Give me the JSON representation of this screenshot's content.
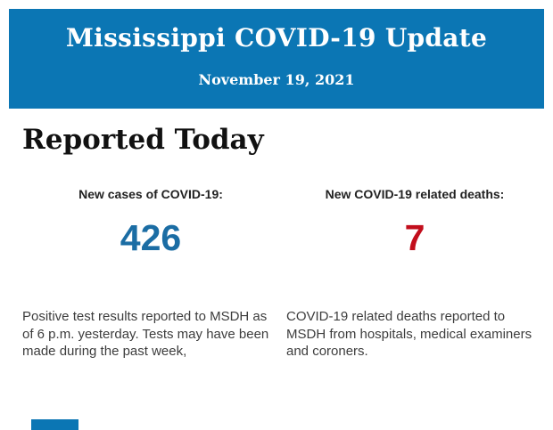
{
  "header": {
    "title": "Mississippi COVID-19 Update",
    "date": "November 19, 2021",
    "background_color": "#0b76b4",
    "text_color": "#ffffff"
  },
  "main": {
    "section_title": "Reported Today",
    "stats": [
      {
        "label": "New cases of COVID-19:",
        "value": "426",
        "value_color": "#1b6da4",
        "description": "Positive test results reported to MSDH as of 6 p.m. yesterday. Tests may have been made during the past week,"
      },
      {
        "label": "New COVID-19 related deaths:",
        "value": "7",
        "value_color": "#c20e1c",
        "description": "COVID-19 related deaths reported to MSDH from hospitals, medical examiners and coroners."
      }
    ]
  },
  "footer": {
    "partial_band_color": "#0b76b4"
  }
}
